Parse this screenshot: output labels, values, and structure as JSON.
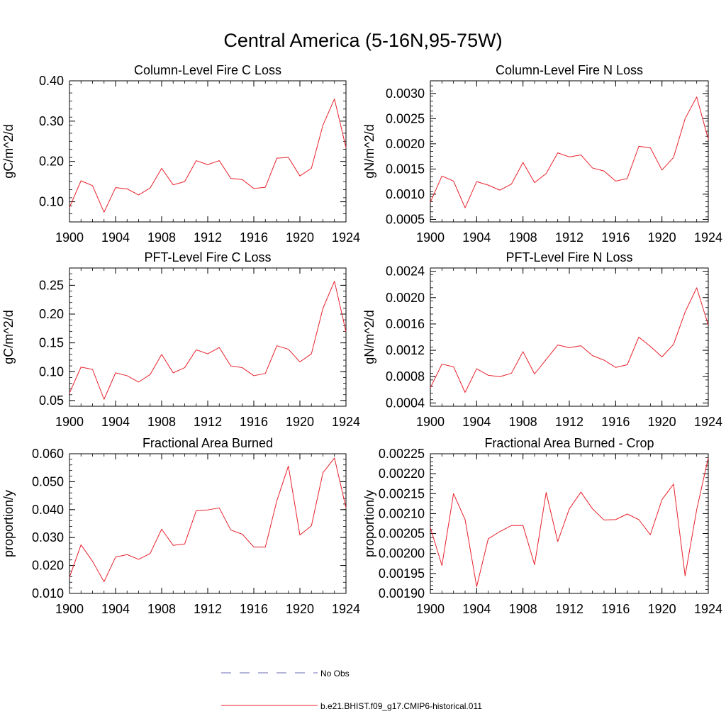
{
  "figure": {
    "title": "Central America (5-16N,95-75W)"
  },
  "legend": {
    "entries": [
      {
        "label": "No Obs",
        "color": "#6b6bb5",
        "dashed": true
      },
      {
        "label": "b.e21.BHIST.f09_g17.CMIP6-historical.011",
        "color": "#e8202a",
        "dashed": false
      }
    ]
  },
  "colors": {
    "series": "#e8202a",
    "obs": "#6b6bb5",
    "axis": "#000000"
  },
  "chart_data": [
    {
      "type": "line",
      "title": "Column-Level Fire C Loss",
      "ylabel": "gC/m^2/d",
      "xlim": [
        1900,
        1924
      ],
      "ylim": [
        0.05,
        0.4
      ],
      "xticks": [
        1900,
        1904,
        1908,
        1912,
        1916,
        1920,
        1924
      ],
      "xtick_labels": [
        "1900",
        "1904",
        "1908",
        "1912",
        "1916",
        "1920",
        "1924"
      ],
      "yticks": [
        0.1,
        0.2,
        0.3,
        0.4
      ],
      "ytick_labels": [
        "0.10",
        "0.20",
        "0.30",
        "0.40"
      ],
      "yminor": 0.02,
      "x": [
        1900,
        1901,
        1902,
        1903,
        1904,
        1905,
        1906,
        1907,
        1908,
        1909,
        1910,
        1911,
        1912,
        1913,
        1914,
        1915,
        1916,
        1917,
        1918,
        1919,
        1920,
        1921,
        1922,
        1923,
        1924
      ],
      "series": [
        {
          "values": [
            0.086,
            0.152,
            0.14,
            0.074,
            0.135,
            0.132,
            0.117,
            0.134,
            0.183,
            0.142,
            0.15,
            0.202,
            0.192,
            0.202,
            0.158,
            0.155,
            0.133,
            0.136,
            0.208,
            0.21,
            0.164,
            0.183,
            0.29,
            0.355,
            0.234
          ]
        }
      ]
    },
    {
      "type": "line",
      "title": "Column-Level Fire N Loss",
      "ylabel": "gN/m^2/d",
      "xlim": [
        1900,
        1924
      ],
      "ylim": [
        0.00045,
        0.00325
      ],
      "xticks": [
        1900,
        1904,
        1908,
        1912,
        1916,
        1920,
        1924
      ],
      "xtick_labels": [
        "1900",
        "1904",
        "1908",
        "1912",
        "1916",
        "1920",
        "1924"
      ],
      "yticks": [
        0.0005,
        0.001,
        0.0015,
        0.002,
        0.0025,
        0.003
      ],
      "ytick_labels": [
        "0.0005",
        "0.0010",
        "0.0015",
        "0.0020",
        "0.0025",
        "0.0030"
      ],
      "yminor": 0.0001,
      "x": [
        1900,
        1901,
        1902,
        1903,
        1904,
        1905,
        1906,
        1907,
        1908,
        1909,
        1910,
        1911,
        1912,
        1913,
        1914,
        1915,
        1916,
        1917,
        1918,
        1919,
        1920,
        1921,
        1922,
        1923,
        1924
      ],
      "series": [
        {
          "values": [
            0.00084,
            0.00136,
            0.00126,
            0.00073,
            0.00125,
            0.00118,
            0.00108,
            0.0012,
            0.00163,
            0.00123,
            0.00141,
            0.00182,
            0.00174,
            0.00178,
            0.00152,
            0.00146,
            0.00126,
            0.00131,
            0.00195,
            0.00192,
            0.00148,
            0.00173,
            0.0025,
            0.00293,
            0.00209
          ]
        }
      ]
    },
    {
      "type": "line",
      "title": "PFT-Level Fire C Loss",
      "ylabel": "gC/m^2/d",
      "xlim": [
        1900,
        1924
      ],
      "ylim": [
        0.04,
        0.28
      ],
      "xticks": [
        1900,
        1904,
        1908,
        1912,
        1916,
        1920,
        1924
      ],
      "xtick_labels": [
        "1900",
        "1904",
        "1908",
        "1912",
        "1916",
        "1920",
        "1924"
      ],
      "yticks": [
        0.05,
        0.1,
        0.15,
        0.2,
        0.25
      ],
      "ytick_labels": [
        "0.05",
        "0.10",
        "0.15",
        "0.20",
        "0.25"
      ],
      "yminor": 0.01,
      "x": [
        1900,
        1901,
        1902,
        1903,
        1904,
        1905,
        1906,
        1907,
        1908,
        1909,
        1910,
        1911,
        1912,
        1913,
        1914,
        1915,
        1916,
        1917,
        1918,
        1919,
        1920,
        1921,
        1922,
        1923,
        1924
      ],
      "series": [
        {
          "values": [
            0.063,
            0.108,
            0.104,
            0.052,
            0.098,
            0.093,
            0.082,
            0.095,
            0.13,
            0.098,
            0.107,
            0.138,
            0.131,
            0.142,
            0.11,
            0.107,
            0.093,
            0.097,
            0.145,
            0.139,
            0.117,
            0.131,
            0.21,
            0.257,
            0.169
          ]
        }
      ]
    },
    {
      "type": "line",
      "title": "PFT-Level Fire N Loss",
      "ylabel": "gN/m^2/d",
      "xlim": [
        1900,
        1924
      ],
      "ylim": [
        0.00035,
        0.00245
      ],
      "xticks": [
        1900,
        1904,
        1908,
        1912,
        1916,
        1920,
        1924
      ],
      "xtick_labels": [
        "1900",
        "1904",
        "1908",
        "1912",
        "1916",
        "1920",
        "1924"
      ],
      "yticks": [
        0.0004,
        0.0008,
        0.0012,
        0.0016,
        0.002,
        0.0024
      ],
      "ytick_labels": [
        "0.0004",
        "0.0008",
        "0.0012",
        "0.0016",
        "0.0020",
        "0.0024"
      ],
      "yminor": 0.0001,
      "x": [
        1900,
        1901,
        1902,
        1903,
        1904,
        1905,
        1906,
        1907,
        1908,
        1909,
        1910,
        1911,
        1912,
        1913,
        1914,
        1915,
        1916,
        1917,
        1918,
        1919,
        1920,
        1921,
        1922,
        1923,
        1924
      ],
      "series": [
        {
          "values": [
            0.00063,
            0.00099,
            0.00095,
            0.00056,
            0.00092,
            0.00082,
            0.0008,
            0.00085,
            0.00118,
            0.00084,
            0.00106,
            0.00128,
            0.00124,
            0.00127,
            0.00112,
            0.00105,
            0.00094,
            0.00098,
            0.0014,
            0.00126,
            0.0011,
            0.00129,
            0.00178,
            0.00215,
            0.00158
          ]
        }
      ]
    },
    {
      "type": "line",
      "title": "Fractional Area Burned",
      "ylabel": "proportion/y",
      "xlim": [
        1900,
        1924
      ],
      "ylim": [
        0.01,
        0.06
      ],
      "xticks": [
        1900,
        1904,
        1908,
        1912,
        1916,
        1920,
        1924
      ],
      "xtick_labels": [
        "1900",
        "1904",
        "1908",
        "1912",
        "1916",
        "1920",
        "1924"
      ],
      "yticks": [
        0.01,
        0.02,
        0.03,
        0.04,
        0.05,
        0.06
      ],
      "ytick_labels": [
        "0.010",
        "0.020",
        "0.030",
        "0.040",
        "0.050",
        "0.060"
      ],
      "yminor": 0.002,
      "x": [
        1900,
        1901,
        1902,
        1903,
        1904,
        1905,
        1906,
        1907,
        1908,
        1909,
        1910,
        1911,
        1912,
        1913,
        1914,
        1915,
        1916,
        1917,
        1918,
        1919,
        1920,
        1921,
        1922,
        1923,
        1924
      ],
      "series": [
        {
          "values": [
            0.0158,
            0.0274,
            0.0215,
            0.0142,
            0.023,
            0.0239,
            0.0222,
            0.0243,
            0.033,
            0.0272,
            0.0277,
            0.0396,
            0.0399,
            0.0406,
            0.0327,
            0.0312,
            0.0266,
            0.0266,
            0.0432,
            0.0556,
            0.0309,
            0.0342,
            0.0532,
            0.0585,
            0.0406
          ]
        }
      ]
    },
    {
      "type": "line",
      "title": "Fractional Area Burned - Crop",
      "ylabel": "proportion/y",
      "xlim": [
        1900,
        1924
      ],
      "ylim": [
        0.0019,
        0.00225
      ],
      "xticks": [
        1900,
        1904,
        1908,
        1912,
        1916,
        1920,
        1924
      ],
      "xtick_labels": [
        "1900",
        "1904",
        "1908",
        "1912",
        "1916",
        "1920",
        "1924"
      ],
      "yticks": [
        0.0019,
        0.00195,
        0.002,
        0.00205,
        0.0021,
        0.00215,
        0.0022,
        0.00225
      ],
      "ytick_labels": [
        "0.00190",
        "0.00195",
        "0.00200",
        "0.00205",
        "0.00210",
        "0.00215",
        "0.00220",
        "0.00225"
      ],
      "yminor": 1e-05,
      "x": [
        1900,
        1901,
        1902,
        1903,
        1904,
        1905,
        1906,
        1907,
        1908,
        1909,
        1910,
        1911,
        1912,
        1913,
        1914,
        1915,
        1916,
        1917,
        1918,
        1919,
        1920,
        1921,
        1922,
        1923,
        1924
      ],
      "series": [
        {
          "values": [
            0.002065,
            0.00197,
            0.00215,
            0.002085,
            0.001917,
            0.002037,
            0.002055,
            0.00207,
            0.00207,
            0.001972,
            0.002153,
            0.00203,
            0.002112,
            0.002154,
            0.002112,
            0.002084,
            0.002085,
            0.002099,
            0.002085,
            0.002047,
            0.002135,
            0.002174,
            0.001944,
            0.00211,
            0.00224
          ]
        }
      ]
    }
  ]
}
